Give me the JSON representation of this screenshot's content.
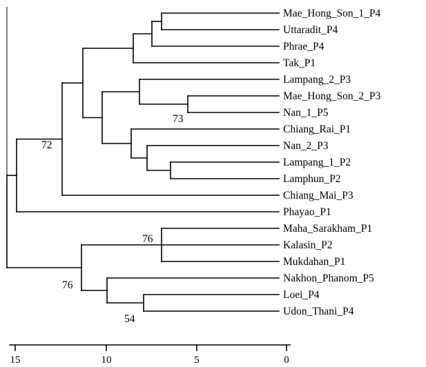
{
  "tree": {
    "leaves": [
      "Mae_Hong_Son_1_P4",
      "Uttaradit_P4",
      "Phrae_P4",
      "Tak_P1",
      "Lampang_2_P3",
      "Mae_Hong_Son_2_P3",
      "Nan_1_P5",
      "Chiang_Rai_P1",
      "Nan_2_P3",
      "Lampang_1_P2",
      "Lamphun_P2",
      "Chiang_Mai_P3",
      "Phayao_P1",
      "Maha_Sarakham_P1",
      "Kalasin_P2",
      "Mukdahan_P1",
      "Nakhon_Phanom_P5",
      "Loei_P4",
      "Udon_Thani_P4"
    ],
    "bootstrap_values": [
      "73",
      "72",
      "76",
      "76",
      "54"
    ]
  },
  "scale": {
    "tick_labels": [
      "15",
      "10",
      "5",
      "0"
    ]
  }
}
